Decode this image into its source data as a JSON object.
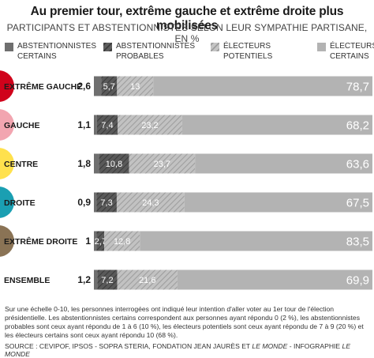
{
  "title": "Au premier tour, extrême gauche et extrême droite plus mobilisées",
  "subtitle": "PARTICIPANTS ET ABSTENTIONNISTES SELON LEUR SYMPATHIE PARTISANE, EN %",
  "colors": {
    "certains_abst": "#6f6f6f",
    "probables_abst": "#555555",
    "potentiels": "#bdbdbd",
    "certains_elect": "#b3b3b3",
    "dot_extreme_gauche": "#d0021b",
    "dot_gauche": "#f2a5b0",
    "dot_centre": "#ffe14d",
    "dot_droite": "#1a9fb2",
    "dot_extreme_droite": "#8a7355"
  },
  "legend": [
    {
      "label": "ABSTENTIONNISTES\nCERTAINS",
      "pattern": "solid-dark"
    },
    {
      "label": "ABSTENTIONNISTES\nPROBABLES",
      "pattern": "hatch-dark"
    },
    {
      "label": "ÉLECTEURS\nPOTENTIELS",
      "pattern": "hatch-light"
    },
    {
      "label": "ÉLECTEURS\nCERTAINS",
      "pattern": "solid-light"
    }
  ],
  "chart_data": {
    "type": "bar",
    "stacked": true,
    "orientation": "horizontal",
    "categories": [
      "EXTRÊME GAUCHE",
      "GAUCHE",
      "CENTRE",
      "DROITE",
      "EXTRÊME DROITE",
      "ENSEMBLE"
    ],
    "series": [
      {
        "name": "ABSTENTIONNISTES CERTAINS",
        "values": [
          2.6,
          1.1,
          1.8,
          0.9,
          1,
          1.2
        ],
        "labels": [
          "2,6",
          "1,1",
          "1,8",
          "0,9",
          "1",
          "1,2"
        ]
      },
      {
        "name": "ABSTENTIONNISTES PROBABLES",
        "values": [
          5.7,
          7.4,
          10.8,
          7.3,
          2.7,
          7.2
        ],
        "labels": [
          "5,7",
          "7,4",
          "10,8",
          "7,3",
          "2,7",
          "7,2"
        ]
      },
      {
        "name": "ÉLECTEURS POTENTIELS",
        "values": [
          13,
          23.2,
          23.7,
          24.3,
          12.8,
          21.6
        ],
        "labels": [
          "13",
          "23,2",
          "23,7",
          "24,3",
          "12,8",
          "21,6"
        ]
      },
      {
        "name": "ÉLECTEURS CERTAINS",
        "values": [
          78.7,
          68.2,
          63.6,
          67.5,
          83.5,
          69.9
        ],
        "labels": [
          "78,7",
          "68,2",
          "63,6",
          "67,5",
          "83,5",
          "69,9"
        ]
      }
    ],
    "dots": [
      "dot_extreme_gauche",
      "dot_gauche",
      "dot_centre",
      "dot_droite",
      "dot_extreme_droite",
      null
    ],
    "xlim": [
      0,
      100
    ]
  },
  "notes": "Sur une échelle 0-10, les personnes interrogées ont indiqué leur intention d'aller voter au 1er tour de l'élection présidentielle. Les abstentionnistes certains correspondent aux personnes ayant répondu 0 (2 %), les abstentionnistes probables sont ceux ayant répondu de 1 à 6 (10 %), les électeurs potentiels sont ceux ayant répondu de 7 à 9 (20 %) et les électeurs certains sont ceux ayant répondu 10 (68 %).",
  "source_prefix": "SOURCE : CEVIPOF, IPSOS - SOPRA STERIA, FONDATION JEAN JAURÈS ET ",
  "source_em1": "LE MONDE",
  "source_mid": " - INFOGRAPHIE ",
  "source_em2": "LE MONDE"
}
